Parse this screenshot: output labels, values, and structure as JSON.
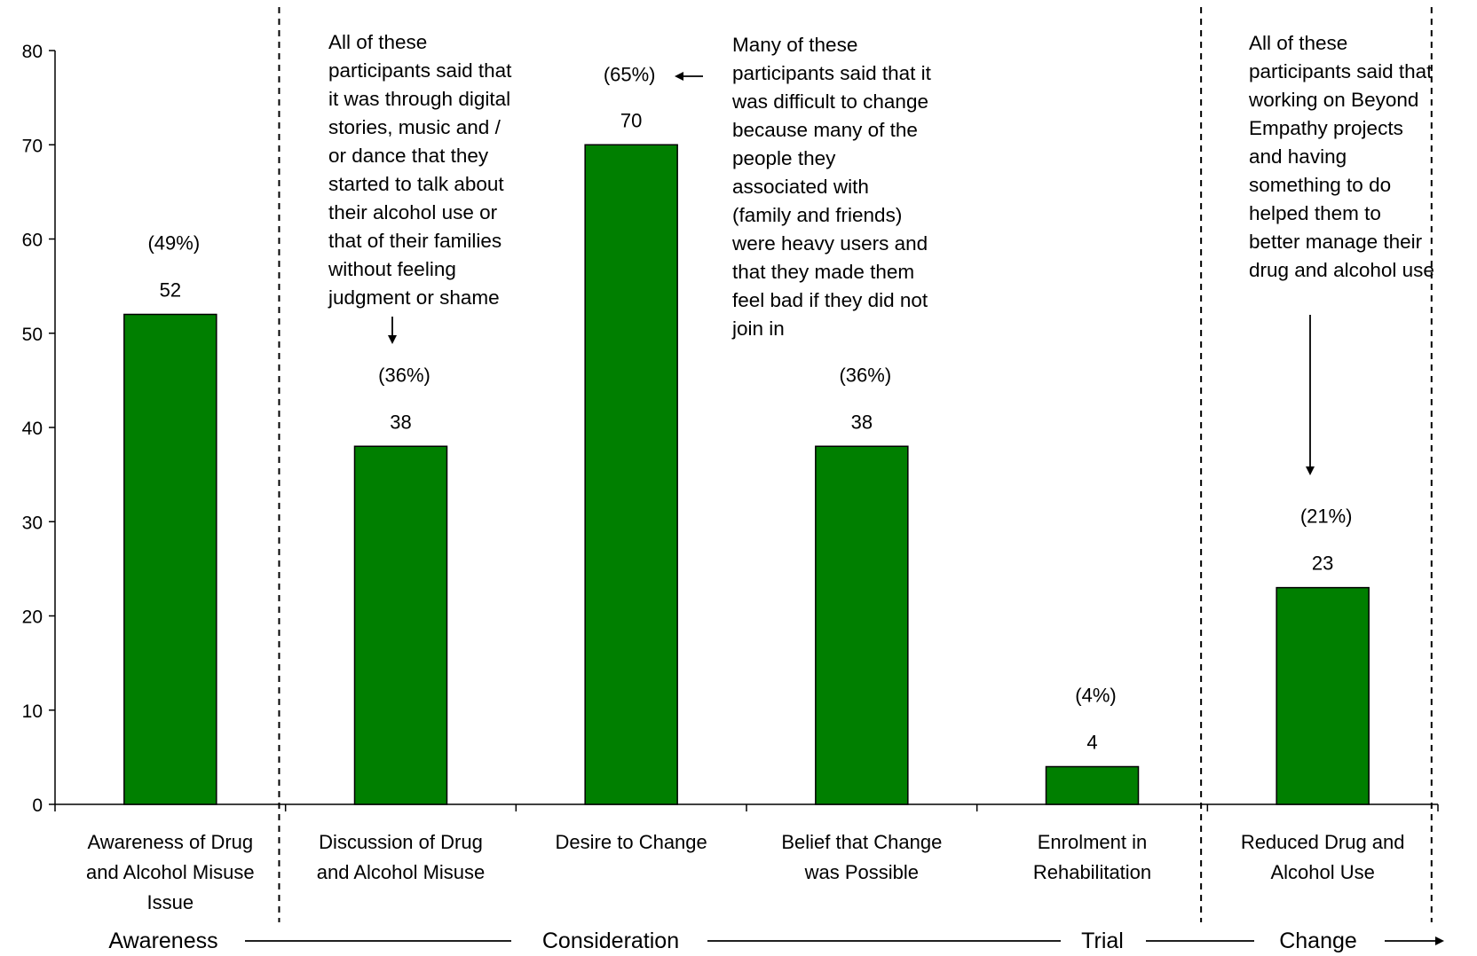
{
  "chart_data": {
    "type": "bar",
    "categories": [
      [
        "Awareness of Drug",
        "and Alcohol Misuse",
        "Issue"
      ],
      [
        "Discussion of Drug",
        "and Alcohol Misuse"
      ],
      [
        "Desire to Change"
      ],
      [
        "Belief that Change",
        "was Possible"
      ],
      [
        "Enrolment in",
        "Rehabilitation"
      ],
      [
        "Reduced Drug and",
        "Alcohol Use"
      ]
    ],
    "values": [
      52,
      38,
      70,
      38,
      4,
      23
    ],
    "value_labels": [
      "52",
      "38",
      "70",
      "38",
      "4",
      "23"
    ],
    "percent_labels": [
      "(49%)",
      "(36%)",
      "(65%)",
      "(36%)",
      "(4%)",
      "(21%)"
    ],
    "ylim": [
      0,
      80
    ],
    "yticks": [
      "0",
      "10",
      "20",
      "30",
      "40",
      "50",
      "60",
      "70",
      "80"
    ],
    "bar_color": "#007f00",
    "grid": false,
    "legend": "none",
    "stages": [
      "Awareness",
      "Consideration",
      "Trial",
      "Change"
    ],
    "annotations": [
      [
        "All of these",
        "participants said that",
        "it was through digital",
        "stories, music and /",
        "or dance that they",
        "started to talk about",
        "their alcohol use or",
        "that of their families",
        "without feeling",
        "judgment or shame"
      ],
      [
        "Many of these",
        "participants said that it",
        "was difficult to change",
        "because many of the",
        "people they",
        "associated with",
        "(family and friends)",
        "were heavy users and",
        "that they made them",
        "feel bad if they did not",
        "join in"
      ],
      [
        "All of these",
        "participants said that",
        "working on Beyond",
        "Empathy projects",
        "and having",
        "something to do",
        "helped them to",
        "better manage their",
        "drug and alcohol use"
      ]
    ]
  }
}
